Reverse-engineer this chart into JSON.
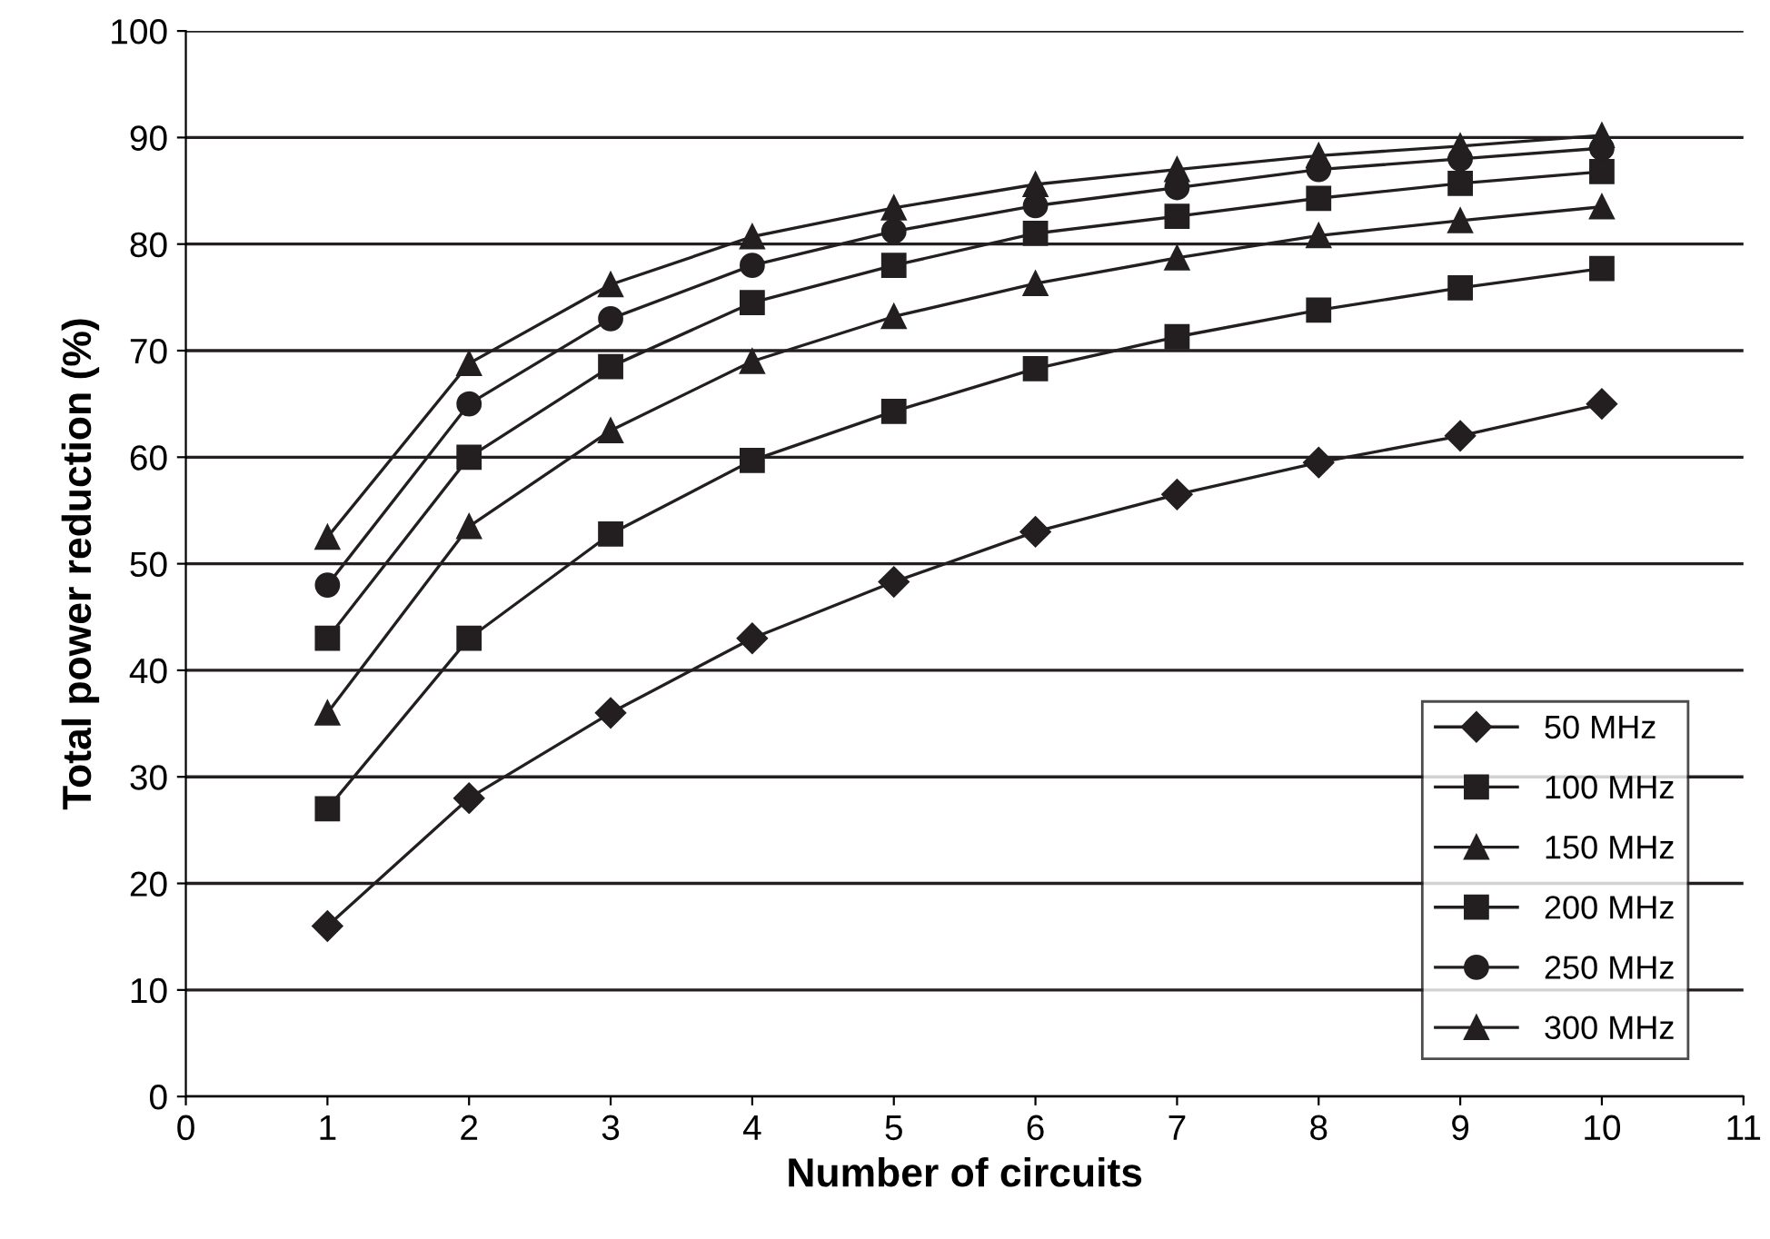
{
  "chart_data": {
    "type": "line",
    "xlabel": "Number of circuits",
    "ylabel": "Total power reduction (%)",
    "x": [
      1,
      2,
      3,
      4,
      5,
      6,
      7,
      8,
      9,
      10
    ],
    "xlim": [
      0,
      11
    ],
    "xticks": [
      0,
      1,
      2,
      3,
      4,
      5,
      6,
      7,
      8,
      9,
      10,
      11
    ],
    "ylim": [
      0,
      100
    ],
    "yticks": [
      0,
      10,
      20,
      30,
      40,
      50,
      60,
      70,
      80,
      90,
      100
    ],
    "grid": "y",
    "legend": "bottom right",
    "line_style": "solid",
    "series": [
      {
        "name": "50 MHz",
        "color": "#231f20",
        "marker": "diamond",
        "values": [
          16,
          28,
          36,
          43,
          48.3,
          53,
          56.5,
          59.5,
          62,
          65
        ]
      },
      {
        "name": "100 MHz",
        "color": "#231f20",
        "marker": "square",
        "values": [
          27,
          43,
          52.8,
          59.7,
          64.3,
          68.3,
          71.3,
          73.8,
          75.9,
          77.7
        ]
      },
      {
        "name": "150 MHz",
        "color": "#231f20",
        "marker": "triangle",
        "values": [
          36,
          53.5,
          62.5,
          69,
          73.2,
          76.3,
          78.7,
          80.8,
          82.2,
          83.5
        ]
      },
      {
        "name": "200 MHz",
        "color": "#231f20",
        "marker": "square",
        "values": [
          43,
          60,
          68.5,
          74.5,
          78,
          81,
          82.6,
          84.3,
          85.7,
          86.8
        ]
      },
      {
        "name": "250 MHz",
        "color": "#231f20",
        "marker": "circle",
        "values": [
          48,
          65,
          73,
          78,
          81.2,
          83.6,
          85.3,
          87,
          88,
          89
        ]
      },
      {
        "name": "300 MHz",
        "color": "#231f20",
        "marker": "triangle",
        "values": [
          52.5,
          68.8,
          76.2,
          80.7,
          83.4,
          85.6,
          87,
          88.3,
          89.2,
          90.2
        ]
      }
    ]
  }
}
